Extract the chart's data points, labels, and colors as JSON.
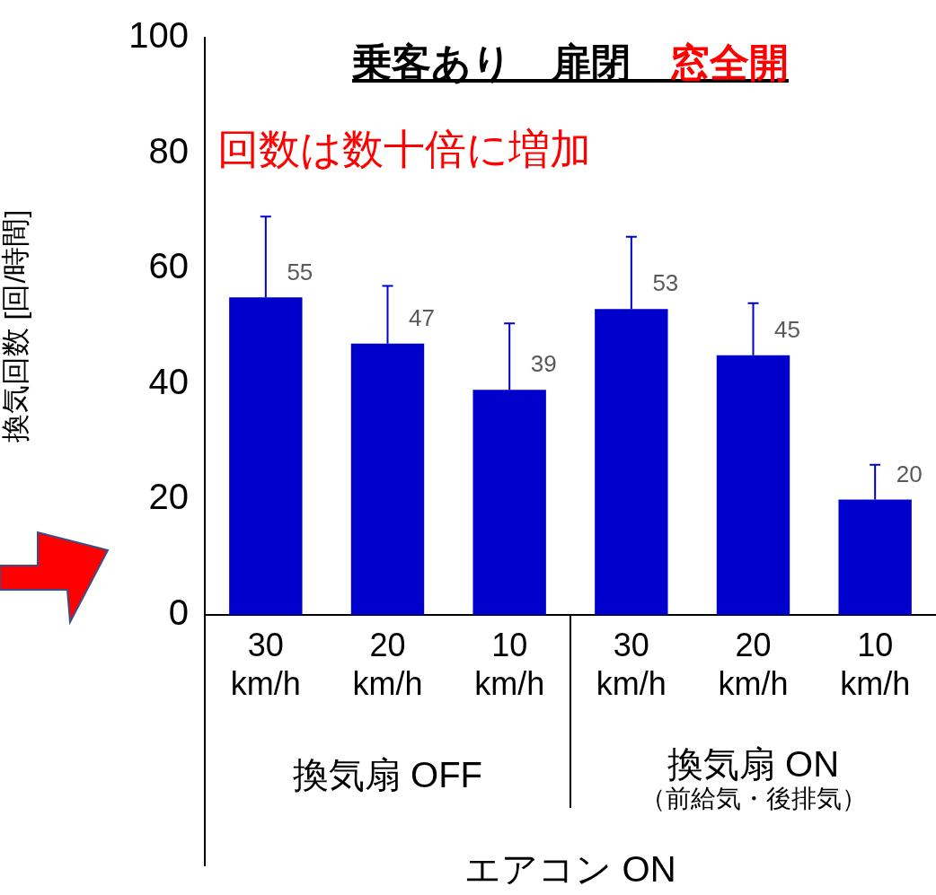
{
  "chart_data": {
    "type": "bar",
    "title": "乗客あり　扉閉　窓全開",
    "categories": [
      "30\nkm/h",
      "20\nkm/h",
      "10\nkm/h",
      "30\nkm/h",
      "20\nkm/h",
      "10\nkm/h"
    ],
    "values": [
      55,
      47,
      39,
      53,
      45,
      20
    ],
    "errors": [
      [
        55,
        69
      ],
      [
        47,
        57
      ],
      [
        39,
        50.5
      ],
      [
        53,
        65.5
      ],
      [
        45,
        54
      ],
      [
        20,
        26
      ]
    ],
    "color": "#0000cc",
    "ylim": [
      0,
      100
    ],
    "yticks": [
      0,
      20,
      40,
      60,
      80,
      100
    ],
    "ylabel": "換気回数 [回/時間]",
    "xlabel": "エアコン ON",
    "annotations": [
      "換気扇 OFF",
      "換気扇 ON\n（前給気・後排気）",
      "回数は数十倍に増加"
    ],
    "data_labels": true,
    "grid": false,
    "legend": false
  }
}
